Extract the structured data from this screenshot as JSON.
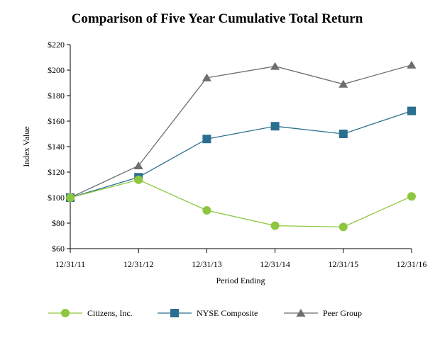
{
  "chart_data": {
    "type": "line",
    "title": "Comparison of Five Year Cumulative Total Return",
    "xlabel": "Period Ending",
    "ylabel": "Index Value",
    "categories": [
      "12/31/11",
      "12/31/12",
      "12/31/13",
      "12/31/14",
      "12/31/15",
      "12/31/16"
    ],
    "ylim": [
      60,
      220
    ],
    "yticks": [
      60,
      80,
      100,
      120,
      140,
      160,
      180,
      200,
      220
    ],
    "ytick_labels": [
      "$60",
      "$80",
      "$100",
      "$120",
      "$140",
      "$160",
      "$180",
      "$200",
      "$220"
    ],
    "grid": false,
    "legend_position": "bottom",
    "series": [
      {
        "name": "Citizens, Inc.",
        "marker": "circle",
        "color": "#8dc63f",
        "values": [
          100,
          114,
          90,
          78,
          77,
          101
        ]
      },
      {
        "name": "NYSE Composite",
        "marker": "square",
        "color": "#2a6f8f",
        "values": [
          100,
          116,
          146,
          156,
          150,
          168
        ]
      },
      {
        "name": "Peer Group",
        "marker": "triangle",
        "color": "#6d6e71",
        "values": [
          100,
          125,
          194,
          203,
          189,
          204
        ]
      }
    ]
  }
}
